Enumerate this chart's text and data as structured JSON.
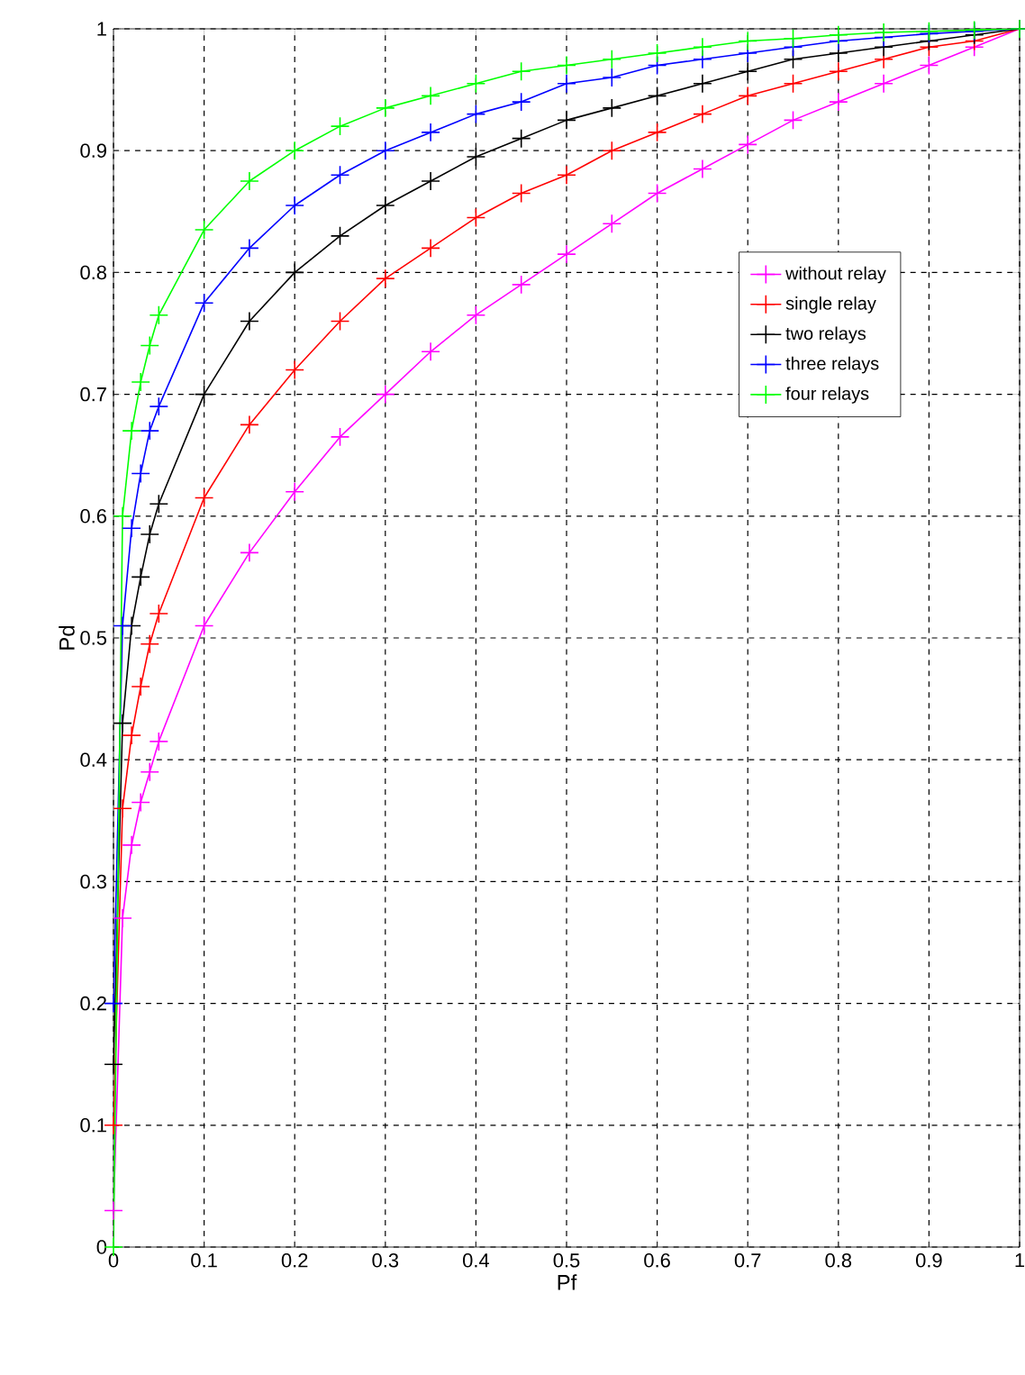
{
  "chart_data": {
    "type": "line",
    "xlabel": "Pf",
    "ylabel": "Pd",
    "x": [
      0,
      0.01,
      0.02,
      0.03,
      0.04,
      0.05,
      0.1,
      0.15,
      0.2,
      0.25,
      0.3,
      0.35,
      0.4,
      0.45,
      0.5,
      0.55,
      0.6,
      0.65,
      0.7,
      0.75,
      0.8,
      0.85,
      0.9,
      0.95,
      1
    ],
    "series": [
      {
        "name": "without relay",
        "color": "#ff00ff",
        "values": [
          0.03,
          0.27,
          0.33,
          0.365,
          0.39,
          0.415,
          0.51,
          0.57,
          0.62,
          0.665,
          0.7,
          0.735,
          0.765,
          0.79,
          0.815,
          0.84,
          0.865,
          0.885,
          0.905,
          0.925,
          0.94,
          0.955,
          0.97,
          0.985,
          1
        ]
      },
      {
        "name": "single relay",
        "color": "#ff0000",
        "values": [
          0.1,
          0.36,
          0.42,
          0.46,
          0.495,
          0.52,
          0.615,
          0.675,
          0.72,
          0.76,
          0.795,
          0.82,
          0.845,
          0.865,
          0.88,
          0.9,
          0.915,
          0.93,
          0.945,
          0.955,
          0.965,
          0.975,
          0.985,
          0.99,
          1
        ]
      },
      {
        "name": "two relays",
        "color": "#000000",
        "values": [
          0.15,
          0.43,
          0.51,
          0.55,
          0.585,
          0.61,
          0.7,
          0.76,
          0.8,
          0.83,
          0.855,
          0.875,
          0.895,
          0.91,
          0.925,
          0.935,
          0.945,
          0.955,
          0.965,
          0.975,
          0.98,
          0.985,
          0.99,
          0.995,
          1
        ]
      },
      {
        "name": "three relays",
        "color": "#0000ff",
        "values": [
          0.2,
          0.51,
          0.59,
          0.635,
          0.67,
          0.69,
          0.775,
          0.82,
          0.855,
          0.88,
          0.9,
          0.915,
          0.93,
          0.94,
          0.955,
          0.96,
          0.97,
          0.975,
          0.98,
          0.985,
          0.99,
          0.993,
          0.996,
          0.998,
          1
        ]
      },
      {
        "name": "four relays",
        "color": "#00ff00",
        "values": [
          0,
          0.6,
          0.67,
          0.71,
          0.74,
          0.765,
          0.835,
          0.875,
          0.9,
          0.92,
          0.935,
          0.945,
          0.955,
          0.965,
          0.97,
          0.975,
          0.98,
          0.985,
          0.99,
          0.992,
          0.995,
          0.997,
          0.998,
          0.999,
          1
        ]
      }
    ],
    "xlim": [
      0,
      1
    ],
    "ylim": [
      0,
      1
    ],
    "xticks": [
      0,
      0.1,
      0.2,
      0.3,
      0.4,
      0.5,
      0.6,
      0.7,
      0.8,
      0.9,
      1
    ],
    "yticks": [
      0,
      0.1,
      0.2,
      0.3,
      0.4,
      0.5,
      0.6,
      0.7,
      0.8,
      0.9,
      1
    ],
    "grid": true,
    "legend": "right",
    "marker": "cross",
    "line_style": "solid"
  }
}
